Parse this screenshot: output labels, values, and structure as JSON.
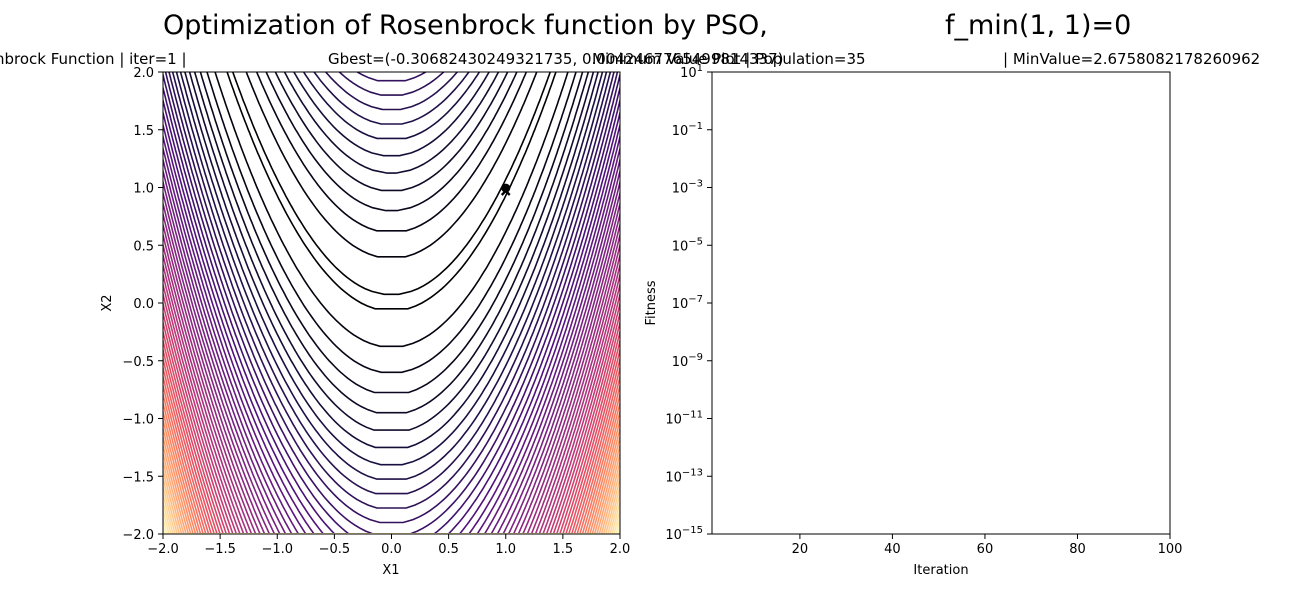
{
  "figure": {
    "suptitle_left": "Optimization of Rosenbrock function by PSO,",
    "suptitle_right": "f_min(1, 1)=0"
  },
  "chart_data": [
    {
      "type": "contour",
      "title_left": "nbrock Function | iter=1 |",
      "title_right": "Gbest=(-0.30682430249321735, 0.0042467765499814337)",
      "xlabel": "X1",
      "ylabel": "X2",
      "xlim": [
        -2,
        2
      ],
      "ylim": [
        -2,
        2
      ],
      "xticks": [
        "−2.0",
        "−1.5",
        "−1.0",
        "−0.5",
        "0.0",
        "0.5",
        "1.0",
        "1.5",
        "2.0"
      ],
      "yticks": [
        "−2.0",
        "−1.5",
        "−1.0",
        "−0.5",
        "0.0",
        "0.5",
        "1.0",
        "1.5",
        "2.0"
      ],
      "function": "Rosenbrock (1 - x)^2 + 100 (y - x^2)^2",
      "colormap": "magma",
      "markers": [
        {
          "shape": "x",
          "x": 1,
          "y": 0.97
        },
        {
          "shape": "circle",
          "x": 1,
          "y": 0.995
        }
      ]
    },
    {
      "type": "line",
      "title_left": "Minimum Value Plot | Population=35",
      "title_right": "| MinValue=2.6758082178260962",
      "xlabel": "Iteration",
      "ylabel": "Fitness",
      "xlim": [
        1,
        100
      ],
      "ylim": [
        1e-15,
        10
      ],
      "yscale": "log",
      "xticks": [
        "20",
        "40",
        "60",
        "80",
        "100"
      ],
      "yticks": [
        "10^-15",
        "10^-13",
        "10^-11",
        "10^-9",
        "10^-7",
        "10^-5",
        "10^-3",
        "10^-1",
        "10^1"
      ],
      "series": []
    }
  ]
}
